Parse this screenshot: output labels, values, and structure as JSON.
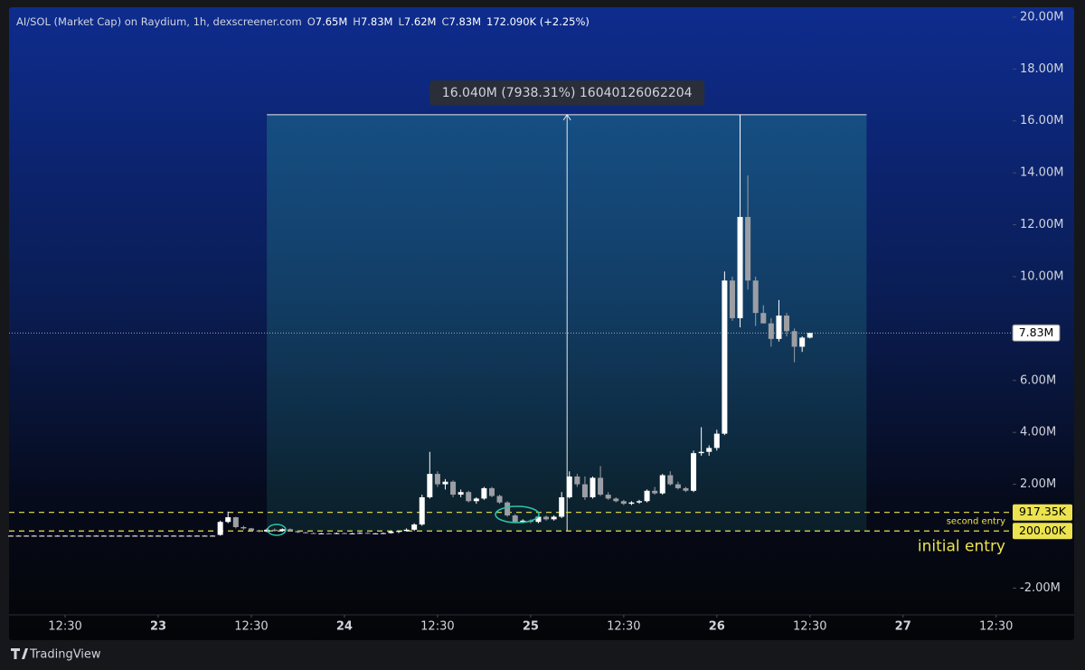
{
  "chart_data": {
    "type": "candlestick",
    "title": "AI/SOL (Market Cap) on Raydium, 1h, dexscreener.com",
    "ohlc_labels": [
      {
        "key": "O",
        "value": "7.65M"
      },
      {
        "key": "H",
        "value": "7.83M"
      },
      {
        "key": "L",
        "value": "7.62M"
      },
      {
        "key": "C",
        "value": "7.83M"
      }
    ],
    "change": "172.090K (+2.25%)",
    "up_color": "#ffffff",
    "down_color": "#9c9ea3",
    "x": [
      -19,
      -18,
      -17,
      -16,
      -15,
      -14,
      -13,
      -12,
      -11,
      -10,
      -9,
      -8,
      -7,
      -6,
      -5,
      -4,
      -3,
      -2,
      -1,
      0,
      1,
      2,
      3,
      4,
      5,
      6,
      7,
      8,
      9,
      10,
      11,
      12,
      13,
      14,
      15,
      16,
      17,
      18,
      19,
      20,
      21,
      22,
      23,
      24,
      25,
      26,
      27,
      28,
      29,
      30,
      31,
      32,
      33,
      34,
      35,
      36,
      37,
      38,
      39,
      40,
      41,
      42,
      43,
      44,
      45,
      46,
      47,
      48,
      49,
      50,
      51,
      52,
      53,
      54,
      55,
      56,
      57,
      58,
      59,
      60,
      61,
      62,
      63,
      64,
      65,
      66,
      67,
      68,
      69,
      70,
      71,
      72,
      73,
      74,
      75,
      76,
      77,
      78,
      79,
      80,
      81,
      82,
      83,
      84
    ],
    "open": [
      0.02,
      0.02,
      0.02,
      0.02,
      0.02,
      0.02,
      0.02,
      0.02,
      0.02,
      0.02,
      0.02,
      0.02,
      0.02,
      0.02,
      0.02,
      0.02,
      0.02,
      0.02,
      0.02,
      0.02,
      0.02,
      0.02,
      0.02,
      0.02,
      0.02,
      0.02,
      0.02,
      0.05,
      0.55,
      0.73,
      0.35,
      0.3,
      0.22,
      0.18,
      0.25,
      0.2,
      0.27,
      0.2,
      0.15,
      0.12,
      0.1,
      0.11,
      0.1,
      0.12,
      0.1,
      0.11,
      0.13,
      0.1,
      0.11,
      0.12,
      0.18,
      0.2,
      0.25,
      0.45,
      1.5,
      2.4,
      2.0,
      2.1,
      1.6,
      1.7,
      1.35,
      1.45,
      1.85,
      1.55,
      1.3,
      0.8,
      0.55,
      0.6,
      0.55,
      0.75,
      0.65,
      0.75,
      1.5,
      2.3,
      2.0,
      1.5,
      2.25,
      1.6,
      1.45,
      1.35,
      1.25,
      1.3,
      1.35,
      1.75,
      1.65,
      2.35,
      2.0,
      1.85,
      1.75,
      3.2,
      3.25,
      3.4,
      3.95,
      9.85,
      8.4,
      12.3,
      9.85,
      8.6,
      8.2,
      7.6,
      8.5,
      7.9,
      7.3,
      7.65
    ],
    "high": [
      0.03,
      0.03,
      0.03,
      0.03,
      0.03,
      0.03,
      0.03,
      0.03,
      0.03,
      0.03,
      0.03,
      0.03,
      0.03,
      0.03,
      0.03,
      0.03,
      0.03,
      0.03,
      0.03,
      0.03,
      0.03,
      0.03,
      0.03,
      0.03,
      0.03,
      0.03,
      0.03,
      0.6,
      0.95,
      0.75,
      0.4,
      0.32,
      0.25,
      0.3,
      0.3,
      0.3,
      0.3,
      0.22,
      0.17,
      0.15,
      0.13,
      0.13,
      0.14,
      0.14,
      0.13,
      0.15,
      0.15,
      0.12,
      0.14,
      0.2,
      0.22,
      0.3,
      0.5,
      1.6,
      3.25,
      2.5,
      2.2,
      2.15,
      1.8,
      1.75,
      1.5,
      1.9,
      1.9,
      1.6,
      1.35,
      0.85,
      0.65,
      0.65,
      0.8,
      0.8,
      0.8,
      1.7,
      2.5,
      2.4,
      2.3,
      2.3,
      2.7,
      1.7,
      1.5,
      1.4,
      1.35,
      1.4,
      1.8,
      1.9,
      2.4,
      2.5,
      2.1,
      1.9,
      3.3,
      4.2,
      3.5,
      4.1,
      10.2,
      10.0,
      16.24,
      13.9,
      10.0,
      8.9,
      8.4,
      9.1,
      8.6,
      8.0,
      7.7,
      7.83
    ],
    "low": [
      0.01,
      0.01,
      0.01,
      0.01,
      0.01,
      0.01,
      0.01,
      0.01,
      0.01,
      0.01,
      0.01,
      0.01,
      0.01,
      0.01,
      0.01,
      0.01,
      0.01,
      0.01,
      0.01,
      0.01,
      0.01,
      0.01,
      0.01,
      0.01,
      0.01,
      0.01,
      0.01,
      0.02,
      0.5,
      0.3,
      0.25,
      0.2,
      0.15,
      0.15,
      0.18,
      0.17,
      0.18,
      0.12,
      0.1,
      0.08,
      0.08,
      0.08,
      0.08,
      0.08,
      0.08,
      0.09,
      0.09,
      0.08,
      0.09,
      0.1,
      0.12,
      0.18,
      0.2,
      0.4,
      1.45,
      1.9,
      1.8,
      1.5,
      1.5,
      1.3,
      1.25,
      1.4,
      1.5,
      1.25,
      0.75,
      0.5,
      0.5,
      0.5,
      0.5,
      0.6,
      0.6,
      0.7,
      1.45,
      1.9,
      1.4,
      1.45,
      1.55,
      1.4,
      1.3,
      1.2,
      1.2,
      1.25,
      1.3,
      1.6,
      1.6,
      1.95,
      1.8,
      1.7,
      1.7,
      3.1,
      3.1,
      3.3,
      3.9,
      8.3,
      8.05,
      9.5,
      8.1,
      8.2,
      7.3,
      7.5,
      7.7,
      6.7,
      7.1,
      7.62
    ],
    "close": [
      0.02,
      0.02,
      0.02,
      0.02,
      0.02,
      0.02,
      0.02,
      0.02,
      0.02,
      0.02,
      0.02,
      0.02,
      0.02,
      0.02,
      0.02,
      0.02,
      0.02,
      0.02,
      0.02,
      0.02,
      0.02,
      0.02,
      0.02,
      0.02,
      0.02,
      0.02,
      0.02,
      0.55,
      0.73,
      0.35,
      0.3,
      0.22,
      0.18,
      0.25,
      0.2,
      0.27,
      0.2,
      0.15,
      0.12,
      0.1,
      0.11,
      0.1,
      0.12,
      0.1,
      0.11,
      0.13,
      0.1,
      0.11,
      0.12,
      0.18,
      0.2,
      0.25,
      0.45,
      1.5,
      2.4,
      2.0,
      2.1,
      1.6,
      1.7,
      1.35,
      1.45,
      1.85,
      1.55,
      1.3,
      0.8,
      0.55,
      0.6,
      0.55,
      0.75,
      0.65,
      0.75,
      1.5,
      2.3,
      2.0,
      1.5,
      2.25,
      1.6,
      1.45,
      1.35,
      1.25,
      1.3,
      1.35,
      1.75,
      1.65,
      2.35,
      2.0,
      1.85,
      1.75,
      3.2,
      3.25,
      3.4,
      3.95,
      9.85,
      8.4,
      12.3,
      9.85,
      8.6,
      8.2,
      7.6,
      8.5,
      7.9,
      7.3,
      7.65,
      7.83
    ],
    "xlim": [
      -19.23,
      109.9
    ],
    "xticks": [
      {
        "value": -12,
        "label": "12:30"
      },
      {
        "value": 0,
        "label": "23"
      },
      {
        "value": 12,
        "label": "12:30"
      },
      {
        "value": 24,
        "label": "24"
      },
      {
        "value": 36,
        "label": "12:30"
      },
      {
        "value": 48,
        "label": "25"
      },
      {
        "value": 60,
        "label": "12:30"
      },
      {
        "value": 72,
        "label": "26"
      },
      {
        "value": 84,
        "label": "12:30"
      },
      {
        "value": 96,
        "label": "27"
      },
      {
        "value": 108,
        "label": "12:30"
      }
    ],
    "ylim": [
      -3.03,
      20.38
    ],
    "yticks": [
      {
        "value": 20,
        "label": "20.00M"
      },
      {
        "value": 18,
        "label": "18.00M"
      },
      {
        "value": 16,
        "label": "16.00M"
      },
      {
        "value": 14,
        "label": "14.00M"
      },
      {
        "value": 12,
        "label": "12.00M"
      },
      {
        "value": 10,
        "label": "10.00M"
      },
      {
        "value": 6,
        "label": "6.00M"
      },
      {
        "value": 4,
        "label": "4.00M"
      },
      {
        "value": 2,
        "label": "2.00M"
      },
      {
        "value": -2,
        "label": "-2.00M"
      }
    ],
    "last_price": {
      "value": 7.83,
      "label": "7.83M"
    },
    "levels": [
      {
        "value": 0.91735,
        "label": "917.35K",
        "note": "second entry",
        "color": "#ece34e"
      },
      {
        "value": 0.2,
        "label": "200.00K",
        "note": "initial entry",
        "color": "#ece34e"
      }
    ],
    "measure": {
      "label": "16.040M (7938.31%) 16040126062204",
      "from": 0.2,
      "to": 16.24,
      "x_from": 14,
      "x_to": 91.3,
      "x_at": 52.7
    }
  },
  "footer": {
    "brand": "TradingView"
  }
}
